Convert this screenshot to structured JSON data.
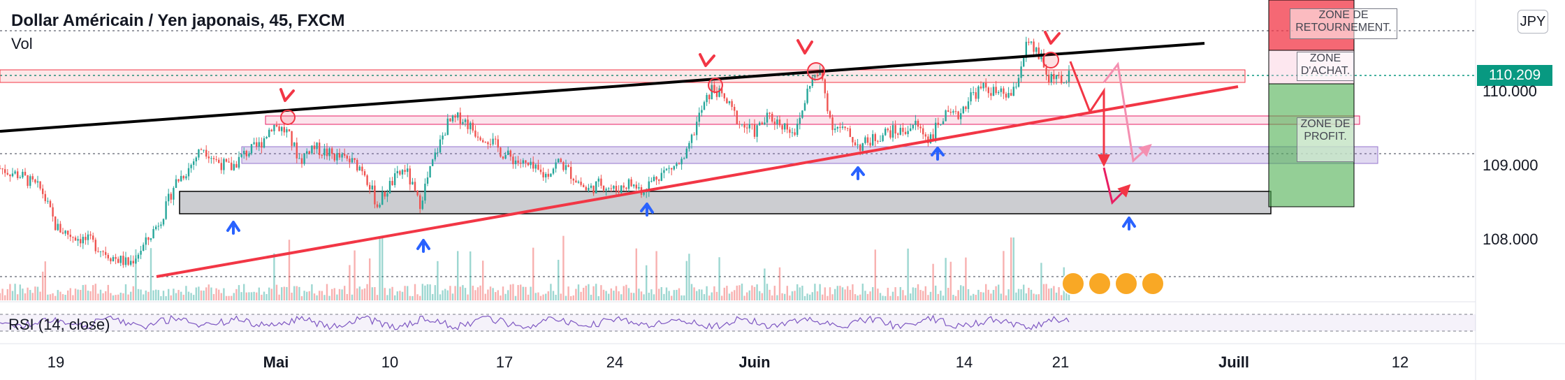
{
  "header": {
    "title": "Dollar Américain / Yen japonais, 45, FXCM",
    "indicator": "Vol",
    "rsi_label": "RSI (14, close)"
  },
  "currency_badge": "JPY",
  "last_price": "110.209",
  "zones": {
    "reversal": "ZONE DE RETOURNEMENT.",
    "buy": "ZONE D'ACHAT.",
    "profit": "ZONE DE PROFIT."
  },
  "colors": {
    "up": "#26a69a",
    "down": "#ef5350",
    "trend_black": "#000000",
    "trend_red": "#f23645",
    "arrow_blue": "#2962ff",
    "arrow_red": "#f23645",
    "price_badge": "#089981",
    "rsi": "#7e57c2"
  },
  "chart_data": {
    "type": "candlestick",
    "symbol": "USDJPY",
    "timeframe": "45",
    "y_ticks": [
      "110.000",
      "109.000",
      "108.000"
    ],
    "y_tick_values": [
      110.0,
      109.0,
      108.0
    ],
    "x_ticks": [
      "19",
      "Mai",
      "10",
      "17",
      "24",
      "Juin",
      "14",
      "21",
      "Juill",
      "12"
    ],
    "x_ticks_bold": [
      "Mai",
      "Juin",
      "Juill"
    ],
    "ylim": [
      107.3,
      111.1
    ],
    "price_path": [
      [
        0,
        109.0
      ],
      [
        30,
        108.9
      ],
      [
        60,
        108.7
      ],
      [
        80,
        108.2
      ],
      [
        100,
        108.1
      ],
      [
        130,
        108.0
      ],
      [
        160,
        107.8
      ],
      [
        185,
        107.7
      ],
      [
        210,
        108.0
      ],
      [
        235,
        108.4
      ],
      [
        250,
        108.8
      ],
      [
        270,
        109.0
      ],
      [
        290,
        109.3
      ],
      [
        310,
        109.1
      ],
      [
        330,
        109.0
      ],
      [
        350,
        109.2
      ],
      [
        370,
        109.3
      ],
      [
        390,
        109.6
      ],
      [
        410,
        109.5
      ],
      [
        430,
        109.1
      ],
      [
        445,
        109.3
      ],
      [
        470,
        109.2
      ],
      [
        500,
        109.1
      ],
      [
        520,
        109.0
      ],
      [
        540,
        108.5
      ],
      [
        560,
        108.8
      ],
      [
        580,
        109.0
      ],
      [
        600,
        108.5
      ],
      [
        620,
        109.1
      ],
      [
        640,
        109.6
      ],
      [
        660,
        109.7
      ],
      [
        680,
        109.5
      ],
      [
        700,
        109.4
      ],
      [
        720,
        109.2
      ],
      [
        740,
        109.1
      ],
      [
        760,
        109.0
      ],
      [
        780,
        108.9
      ],
      [
        800,
        109.1
      ],
      [
        820,
        108.9
      ],
      [
        840,
        108.7
      ],
      [
        860,
        108.8
      ],
      [
        880,
        108.7
      ],
      [
        900,
        108.8
      ],
      [
        920,
        108.7
      ],
      [
        940,
        108.9
      ],
      [
        960,
        109.0
      ],
      [
        980,
        109.1
      ],
      [
        1000,
        109.7
      ],
      [
        1020,
        110.1
      ],
      [
        1040,
        109.9
      ],
      [
        1060,
        109.6
      ],
      [
        1080,
        109.5
      ],
      [
        1100,
        109.7
      ],
      [
        1120,
        109.6
      ],
      [
        1140,
        109.5
      ],
      [
        1160,
        110.2
      ],
      [
        1175,
        110.3
      ],
      [
        1190,
        109.6
      ],
      [
        1210,
        109.5
      ],
      [
        1230,
        109.3
      ],
      [
        1250,
        109.4
      ],
      [
        1270,
        109.5
      ],
      [
        1290,
        109.5
      ],
      [
        1310,
        109.6
      ],
      [
        1330,
        109.4
      ],
      [
        1350,
        109.7
      ],
      [
        1370,
        109.7
      ],
      [
        1390,
        110.0
      ],
      [
        1410,
        110.1
      ],
      [
        1430,
        110.0
      ],
      [
        1450,
        110.0
      ],
      [
        1470,
        110.7
      ],
      [
        1490,
        110.5
      ],
      [
        1500,
        110.2
      ],
      [
        1510,
        110.3
      ],
      [
        1520,
        110.1
      ],
      [
        1530,
        110.3
      ]
    ]
  }
}
